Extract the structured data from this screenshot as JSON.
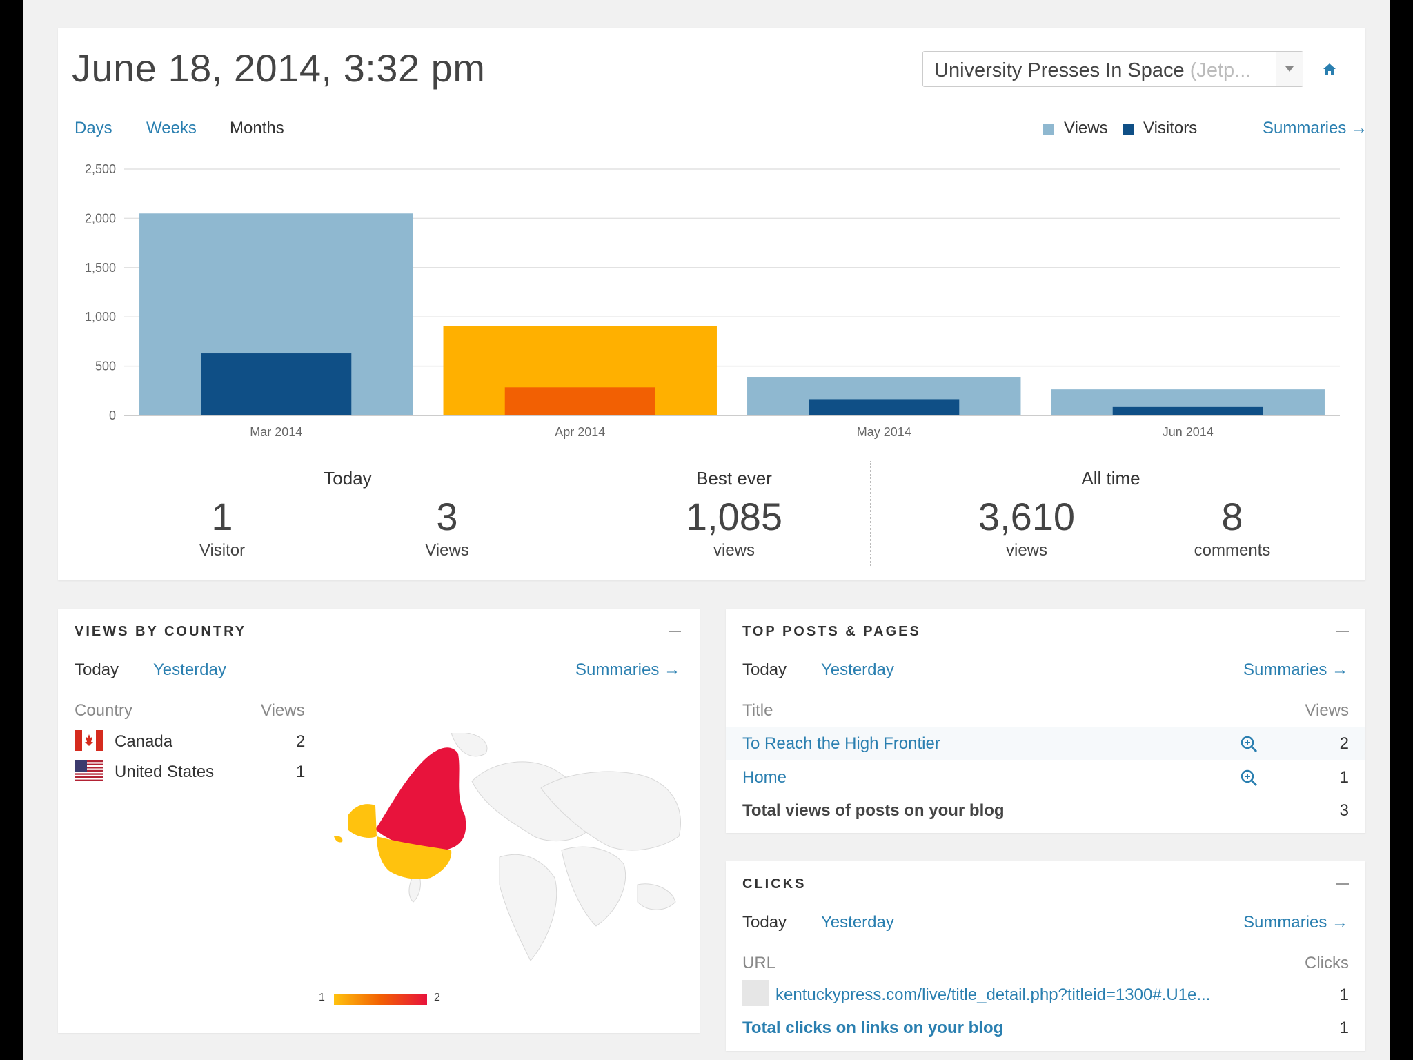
{
  "header": {
    "datetime": "June 18, 2014, 3:32 pm",
    "site_select": {
      "name": "University Presses In Space",
      "suffix": " (Jetp..."
    },
    "home_icon": "home-icon"
  },
  "period_tabs": [
    {
      "label": "Days",
      "active": false
    },
    {
      "label": "Weeks",
      "active": false
    },
    {
      "label": "Months",
      "active": true
    }
  ],
  "legend": {
    "views": "Views",
    "visitors": "Visitors",
    "summaries": "Summaries"
  },
  "colors": {
    "views": "#8fb8d0",
    "visitors": "#0f4f86",
    "highlight_views": "#ffb000",
    "highlight_visitors": "#f26003",
    "link": "#2a7fb0",
    "map_high": "#e8133c",
    "map_low": "#ffc20e"
  },
  "chart_data": {
    "type": "bar",
    "categories": [
      "Mar 2014",
      "Apr 2014",
      "May 2014",
      "Jun 2014"
    ],
    "series": [
      {
        "name": "Views",
        "values": [
          2050,
          910,
          385,
          265
        ]
      },
      {
        "name": "Visitors",
        "values": [
          630,
          285,
          165,
          85
        ]
      }
    ],
    "highlighted_category": "Apr 2014",
    "yticks": [
      "2,500",
      "2,000",
      "1,500",
      "1,000",
      "500",
      "0"
    ],
    "ylim": [
      0,
      2500
    ],
    "grid": true
  },
  "stats": {
    "today": {
      "label": "Today",
      "visitors": "1",
      "visitors_unit": "Visitor",
      "views": "3",
      "views_unit": "Views"
    },
    "best_ever": {
      "label": "Best ever",
      "value": "1,085",
      "unit": "views"
    },
    "all_time": {
      "label": "All time",
      "views": "3,610",
      "views_unit": "views",
      "comments": "8",
      "comments_unit": "comments"
    }
  },
  "country_panel": {
    "title": "VIEWS BY COUNTRY",
    "tabs": [
      "Today",
      "Yesterday"
    ],
    "summaries": "Summaries",
    "columns": [
      "Country",
      "Views"
    ],
    "rows": [
      {
        "country": "Canada",
        "views": "2",
        "flag": "canada-flag"
      },
      {
        "country": "United States",
        "views": "1",
        "flag": "us-flag"
      }
    ],
    "map_legend": {
      "min": "1",
      "max": "2"
    }
  },
  "posts_panel": {
    "title": "TOP POSTS & PAGES",
    "tabs": [
      "Today",
      "Yesterday"
    ],
    "summaries": "Summaries",
    "columns": [
      "Title",
      "Views"
    ],
    "rows": [
      {
        "title": "To Reach the High Frontier",
        "views": "2"
      },
      {
        "title": "Home",
        "views": "1"
      }
    ],
    "total_label": "Total views of posts on your blog",
    "total_value": "3"
  },
  "clicks_panel": {
    "title": "CLICKS",
    "tabs": [
      "Today",
      "Yesterday"
    ],
    "summaries": "Summaries",
    "columns": [
      "URL",
      "Clicks"
    ],
    "rows": [
      {
        "url": "kentuckypress.com/live/title_detail.php?titleid=1300#.U1e...",
        "clicks": "1"
      }
    ],
    "total_label": "Total clicks on links on your blog",
    "total_value": "1"
  }
}
